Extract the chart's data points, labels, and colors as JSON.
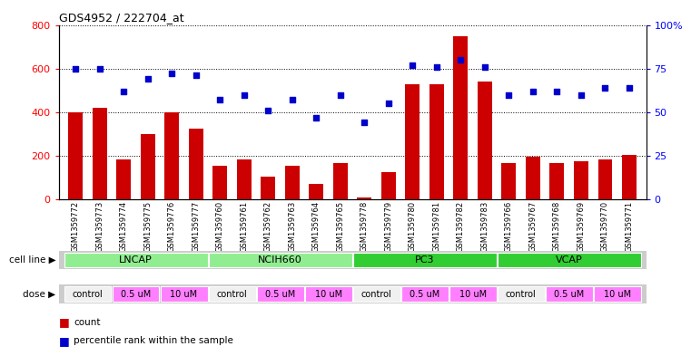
{
  "title": "GDS4952 / 222704_at",
  "samples": [
    "GSM1359772",
    "GSM1359773",
    "GSM1359774",
    "GSM1359775",
    "GSM1359776",
    "GSM1359777",
    "GSM1359760",
    "GSM1359761",
    "GSM1359762",
    "GSM1359763",
    "GSM1359764",
    "GSM1359765",
    "GSM1359778",
    "GSM1359779",
    "GSM1359780",
    "GSM1359781",
    "GSM1359782",
    "GSM1359783",
    "GSM1359766",
    "GSM1359767",
    "GSM1359768",
    "GSM1359769",
    "GSM1359770",
    "GSM1359771"
  ],
  "counts": [
    400,
    420,
    185,
    300,
    400,
    325,
    155,
    185,
    105,
    155,
    70,
    165,
    10,
    125,
    530,
    530,
    750,
    540,
    165,
    195,
    165,
    175,
    185,
    205
  ],
  "percentiles": [
    75,
    75,
    62,
    69,
    72,
    71,
    57,
    60,
    51,
    57,
    47,
    60,
    44,
    55,
    77,
    76,
    80,
    76,
    60,
    62,
    62,
    60,
    64,
    64
  ],
  "cell_lines": [
    {
      "name": "LNCAP",
      "start": 0,
      "end": 6
    },
    {
      "name": "NCIH660",
      "start": 6,
      "end": 12
    },
    {
      "name": "PC3",
      "start": 12,
      "end": 18
    },
    {
      "name": "VCAP",
      "start": 18,
      "end": 24
    }
  ],
  "cell_line_colors": [
    "#90EE90",
    "#90EE90",
    "#32CD32",
    "#32CD32"
  ],
  "dose_labels": [
    "control",
    "0.5 uM",
    "10 uM"
  ],
  "dose_colors": [
    "#f0f0f0",
    "#FF80FF",
    "#FF80FF"
  ],
  "bar_color": "#CC0000",
  "dot_color": "#0000CC",
  "ylim_left": [
    0,
    800
  ],
  "ylim_right": [
    0,
    100
  ],
  "yticks_left": [
    0,
    200,
    400,
    600,
    800
  ],
  "yticks_right": [
    0,
    25,
    50,
    75,
    100
  ],
  "background_color": "#ffffff"
}
